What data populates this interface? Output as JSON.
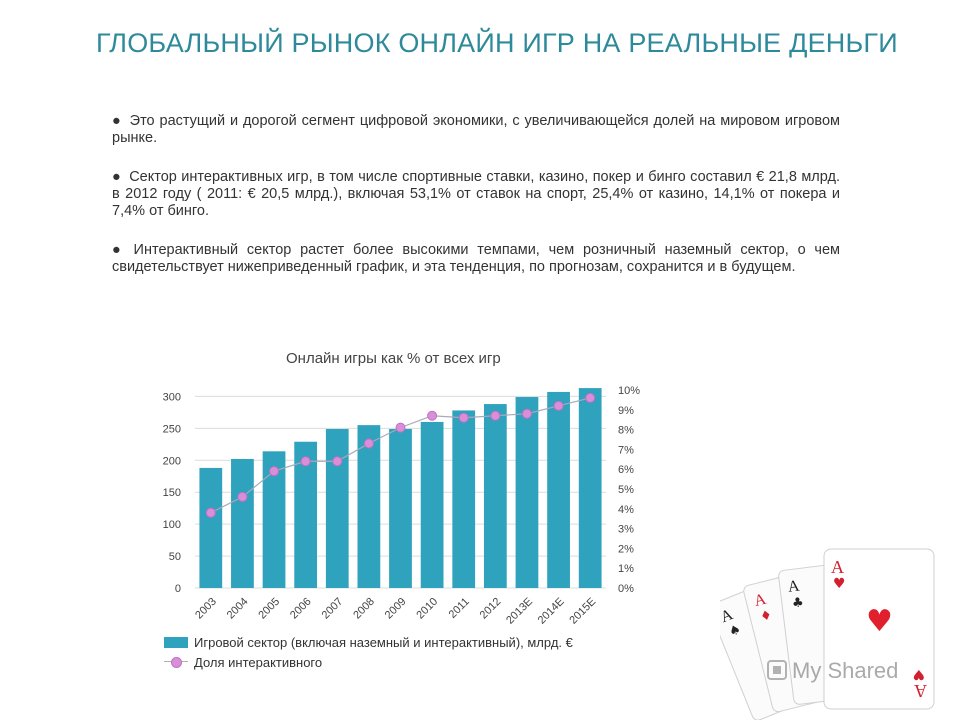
{
  "title": "ГЛОБАЛЬНЫЙ РЫНОК ОНЛАЙН ИГР НА РЕАЛЬНЫЕ ДЕНЬГИ",
  "bullets": [
    "Это растущий и дорогой сегмент цифровой экономики, с увеличивающейся долей на мировом игровом рынке.",
    "Сектор интерактивных игр, в том числе спортивные ставки, казино, покер и бинго составил  € 21,8 млрд. в 2012 году ( 2011: € 20,5 млрд.), включая 53,1% от ставок на спорт, 25,4% от казино, 14,1% от покера и 7,4% от бинго.",
    "Интерактивный сектор растет более высокими темпами, чем розничный наземный сектор, о чем свидетельствует нижеприведенный график, и эта тенденция, по прогнозам, сохранится и в будущем."
  ],
  "bullet_glyph": "●",
  "chart_data": {
    "type": "bar",
    "title": "Онлайн игры как % от всех игр",
    "categories": [
      "2003",
      "2004",
      "2005",
      "2006",
      "2007",
      "2008",
      "2009",
      "2010",
      "2011",
      "2012",
      "2013E",
      "2014E",
      "2015E"
    ],
    "series": [
      {
        "name": "Игровой сектор (включая наземный и интерактивный), млрд. €",
        "type": "bar",
        "axis": "left",
        "values": [
          188,
          202,
          214,
          229,
          249,
          255,
          249,
          260,
          278,
          288,
          299,
          307,
          313
        ],
        "color": "#2fa2bd"
      },
      {
        "name": "Доля интерактивного",
        "type": "line",
        "axis": "right",
        "values": [
          3.8,
          4.6,
          5.9,
          6.4,
          6.4,
          7.3,
          8.1,
          8.7,
          8.6,
          8.7,
          8.8,
          9.2,
          9.6
        ],
        "color": "#d88fd8"
      }
    ],
    "y_left": {
      "ylim": [
        0,
        310
      ],
      "ticks": [
        "0",
        "50",
        "100",
        "150",
        "200",
        "250",
        "300"
      ],
      "tick_values": [
        0,
        50,
        100,
        150,
        200,
        250,
        300
      ]
    },
    "y_right": {
      "ylim": [
        0,
        10
      ],
      "ticks": [
        "0%",
        "1%",
        "2%",
        "3%",
        "4%",
        "5%",
        "6%",
        "7%",
        "8%",
        "9%",
        "10%"
      ],
      "tick_values": [
        0,
        1,
        2,
        3,
        4,
        5,
        6,
        7,
        8,
        9,
        10
      ]
    },
    "grid": true,
    "legend": "bottom-left"
  },
  "logo_text": "My Shared",
  "colors": {
    "title": "#2e8a9b",
    "bar": "#2fa2bd",
    "line_marker": "#d88fd8",
    "grid": "#dcdcdc"
  }
}
